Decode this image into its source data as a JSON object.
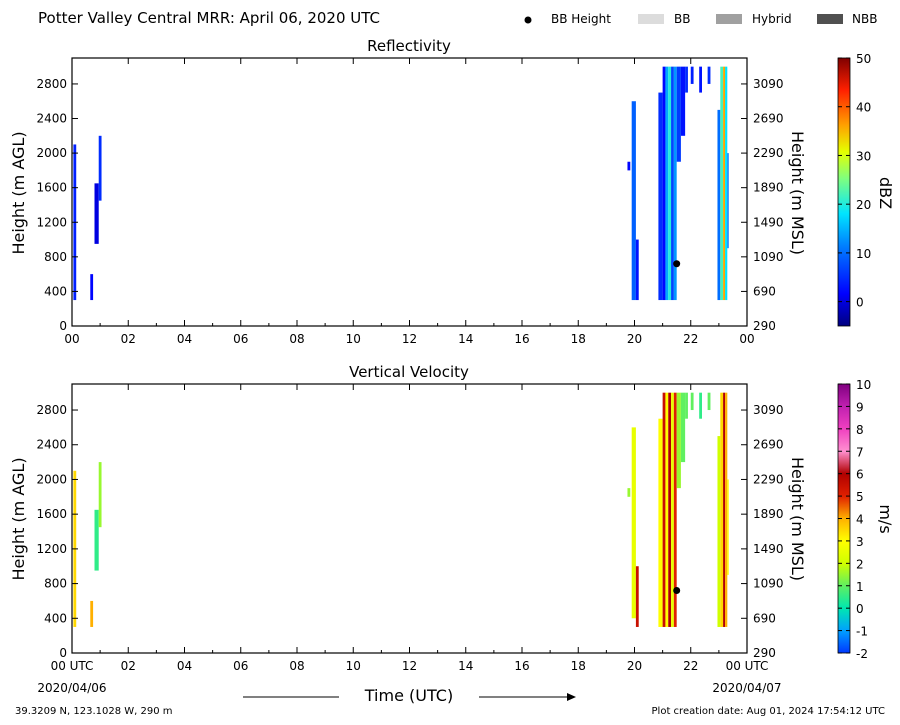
{
  "header": {
    "title": "Potter Valley Central MRR:  April 06, 2020 UTC",
    "legend": [
      {
        "label": "BB Height",
        "kind": "dot",
        "color": "#000000"
      },
      {
        "label": "BB",
        "kind": "box",
        "color": "#dcdcdc"
      },
      {
        "label": "Hybrid",
        "kind": "box",
        "color": "#a0a0a0"
      },
      {
        "label": "NBB",
        "kind": "box",
        "color": "#505050"
      }
    ]
  },
  "footer": {
    "coords": "39.3209 N, 123.1028 W, 290 m",
    "creation": "Plot creation date: Aug 01, 2024 17:54:12 UTC",
    "xlabel": "Time (UTC)",
    "date_start": "2020/04/06",
    "date_end": "2020/04/07"
  },
  "chart_data": [
    {
      "type": "heatmap",
      "title": "Reflectivity",
      "ylabel": "Height (m AGL)",
      "ylabel_right": "Height (m MSL)",
      "xlim": [
        0,
        24
      ],
      "ylim": [
        0,
        3100
      ],
      "x_ticks": [
        "00",
        "02",
        "04",
        "06",
        "08",
        "10",
        "12",
        "14",
        "16",
        "18",
        "20",
        "22",
        "00"
      ],
      "y_ticks": [
        0,
        400,
        800,
        1200,
        1600,
        2000,
        2400,
        2800
      ],
      "y_ticks_right": [
        290,
        690,
        1090,
        1490,
        1890,
        2290,
        2690,
        3090
      ],
      "colorbar": {
        "label": "dBZ",
        "min": -5,
        "max": 50,
        "ticks": [
          0,
          10,
          20,
          30,
          40,
          50
        ]
      },
      "bb_height": [
        {
          "x": 21.5,
          "y": 720
        }
      ],
      "echoes": [
        {
          "x0": 0.05,
          "x1": 0.15,
          "y0": 300,
          "y1": 2100,
          "value": 4
        },
        {
          "x0": 0.65,
          "x1": 0.75,
          "y0": 300,
          "y1": 600,
          "value": 2
        },
        {
          "x0": 0.8,
          "x1": 0.95,
          "y0": 950,
          "y1": 1650,
          "value": 0
        },
        {
          "x0": 0.95,
          "x1": 1.05,
          "y0": 1450,
          "y1": 2200,
          "value": 5
        },
        {
          "x0": 19.75,
          "x1": 19.85,
          "y0": 1800,
          "y1": 1900,
          "value": 2
        },
        {
          "x0": 19.9,
          "x1": 20.05,
          "y0": 300,
          "y1": 2600,
          "value": 9
        },
        {
          "x0": 20.05,
          "x1": 20.15,
          "y0": 300,
          "y1": 1000,
          "value": 3
        },
        {
          "x0": 20.85,
          "x1": 21.0,
          "y0": 300,
          "y1": 2700,
          "value": 5
        },
        {
          "x0": 21.0,
          "x1": 21.1,
          "y0": 300,
          "y1": 3000,
          "value": 2
        },
        {
          "x0": 21.1,
          "x1": 21.2,
          "y0": 300,
          "y1": 3000,
          "value": 14
        },
        {
          "x0": 21.2,
          "x1": 21.3,
          "y0": 300,
          "y1": 3000,
          "value": 20
        },
        {
          "x0": 21.3,
          "x1": 21.4,
          "y0": 300,
          "y1": 3000,
          "value": 7
        },
        {
          "x0": 21.4,
          "x1": 21.5,
          "y0": 300,
          "y1": 3000,
          "value": 13
        },
        {
          "x0": 21.5,
          "x1": 21.65,
          "y0": 1900,
          "y1": 3000,
          "value": 6
        },
        {
          "x0": 21.65,
          "x1": 21.8,
          "y0": 2200,
          "y1": 3000,
          "value": 3
        },
        {
          "x0": 21.8,
          "x1": 21.9,
          "y0": 2700,
          "y1": 3000,
          "value": 5
        },
        {
          "x0": 22.0,
          "x1": 22.1,
          "y0": 2800,
          "y1": 3000,
          "value": 4
        },
        {
          "x0": 22.3,
          "x1": 22.4,
          "y0": 2700,
          "y1": 3000,
          "value": 3
        },
        {
          "x0": 22.6,
          "x1": 22.7,
          "y0": 2800,
          "y1": 3000,
          "value": 5
        },
        {
          "x0": 22.95,
          "x1": 23.05,
          "y0": 300,
          "y1": 2500,
          "value": 10
        },
        {
          "x0": 23.05,
          "x1": 23.15,
          "y0": 300,
          "y1": 3000,
          "value": 22
        },
        {
          "x0": 23.15,
          "x1": 23.22,
          "y0": 300,
          "y1": 3000,
          "value": 36
        },
        {
          "x0": 23.22,
          "x1": 23.3,
          "y0": 300,
          "y1": 3000,
          "value": 18
        },
        {
          "x0": 23.3,
          "x1": 23.35,
          "y0": 900,
          "y1": 2000,
          "value": 11
        }
      ]
    },
    {
      "type": "heatmap",
      "title": "Vertical Velocity",
      "ylabel": "Height (m AGL)",
      "ylabel_right": "Height (m MSL)",
      "xlim": [
        0,
        24
      ],
      "ylim": [
        0,
        3100
      ],
      "x_ticks": [
        "00 UTC",
        "02",
        "04",
        "06",
        "08",
        "10",
        "12",
        "14",
        "16",
        "18",
        "20",
        "22",
        "00 UTC"
      ],
      "y_ticks": [
        0,
        400,
        800,
        1200,
        1600,
        2000,
        2400,
        2800
      ],
      "y_ticks_right": [
        290,
        690,
        1090,
        1490,
        1890,
        2290,
        2690,
        3090
      ],
      "colorbar": {
        "label": "m/s",
        "min": -2,
        "max": 10,
        "ticks": [
          -2,
          -1,
          0,
          1,
          2,
          3,
          4,
          5,
          6,
          7,
          8,
          9,
          10
        ]
      },
      "bb_height": [
        {
          "x": 21.5,
          "y": 720
        }
      ],
      "echoes": [
        {
          "x0": 0.05,
          "x1": 0.15,
          "y0": 300,
          "y1": 2100,
          "value": 3.5
        },
        {
          "x0": 0.65,
          "x1": 0.75,
          "y0": 300,
          "y1": 600,
          "value": 4
        },
        {
          "x0": 0.8,
          "x1": 0.95,
          "y0": 950,
          "y1": 1650,
          "value": 0.5
        },
        {
          "x0": 0.95,
          "x1": 1.05,
          "y0": 1450,
          "y1": 2200,
          "value": 1.5
        },
        {
          "x0": 19.75,
          "x1": 19.85,
          "y0": 1800,
          "y1": 1900,
          "value": 1.5
        },
        {
          "x0": 19.9,
          "x1": 20.05,
          "y0": 400,
          "y1": 2600,
          "value": 2.5
        },
        {
          "x0": 20.05,
          "x1": 20.15,
          "y0": 300,
          "y1": 1000,
          "value": 5.5
        },
        {
          "x0": 20.85,
          "x1": 21.0,
          "y0": 300,
          "y1": 2700,
          "value": 3
        },
        {
          "x0": 21.0,
          "x1": 21.1,
          "y0": 300,
          "y1": 3000,
          "value": 5.5
        },
        {
          "x0": 21.1,
          "x1": 21.2,
          "y0": 300,
          "y1": 3000,
          "value": 3
        },
        {
          "x0": 21.2,
          "x1": 21.3,
          "y0": 300,
          "y1": 3000,
          "value": 6
        },
        {
          "x0": 21.3,
          "x1": 21.4,
          "y0": 300,
          "y1": 3000,
          "value": 2.5
        },
        {
          "x0": 21.4,
          "x1": 21.5,
          "y0": 300,
          "y1": 3000,
          "value": 5
        },
        {
          "x0": 21.5,
          "x1": 21.65,
          "y0": 1900,
          "y1": 3000,
          "value": 1.5
        },
        {
          "x0": 21.65,
          "x1": 21.8,
          "y0": 2200,
          "y1": 3000,
          "value": 1
        },
        {
          "x0": 21.8,
          "x1": 21.9,
          "y0": 2700,
          "y1": 3000,
          "value": 1
        },
        {
          "x0": 22.0,
          "x1": 22.1,
          "y0": 2800,
          "y1": 3000,
          "value": 1
        },
        {
          "x0": 22.3,
          "x1": 22.4,
          "y0": 2700,
          "y1": 3000,
          "value": 0.5
        },
        {
          "x0": 22.6,
          "x1": 22.7,
          "y0": 2800,
          "y1": 3000,
          "value": 1
        },
        {
          "x0": 22.95,
          "x1": 23.05,
          "y0": 300,
          "y1": 2500,
          "value": 2
        },
        {
          "x0": 23.05,
          "x1": 23.15,
          "y0": 300,
          "y1": 3000,
          "value": 3.5
        },
        {
          "x0": 23.15,
          "x1": 23.22,
          "y0": 300,
          "y1": 3000,
          "value": 6
        },
        {
          "x0": 23.22,
          "x1": 23.3,
          "y0": 300,
          "y1": 3000,
          "value": 4
        },
        {
          "x0": 23.3,
          "x1": 23.35,
          "y0": 900,
          "y1": 2000,
          "value": 3
        }
      ]
    }
  ]
}
